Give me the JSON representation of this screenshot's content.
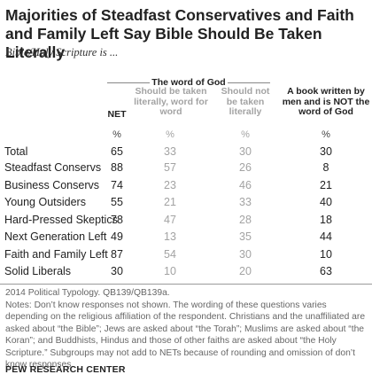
{
  "title": "Majorities of Steadfast Conservatives and Faith and Family Left Say Bible Should Be Taken Literally",
  "subtitle": "Bible/Holy Scripture is ...",
  "chart_data": {
    "type": "table",
    "group_label": "The word of God",
    "columns": [
      {
        "label": "NET",
        "unit": "%"
      },
      {
        "label": "Should be taken literally, word for word",
        "unit": "%"
      },
      {
        "label": "Should not be taken literally",
        "unit": "%"
      },
      {
        "label": "A book written by men and is NOT the word of God",
        "unit": "%"
      }
    ],
    "rows": [
      {
        "label": "Total",
        "values": [
          "65",
          "33",
          "30",
          "30"
        ]
      },
      {
        "label": "Steadfast Conservs",
        "values": [
          "88",
          "57",
          "26",
          "8"
        ]
      },
      {
        "label": "Business Conservs",
        "values": [
          "74",
          "23",
          "46",
          "21"
        ]
      },
      {
        "label": "Young Outsiders",
        "values": [
          "55",
          "21",
          "33",
          "40"
        ]
      },
      {
        "label": "Hard-Pressed Skeptics",
        "values": [
          "78",
          "47",
          "28",
          "18"
        ]
      },
      {
        "label": "Next Generation Left",
        "values": [
          "49",
          "13",
          "35",
          "44"
        ]
      },
      {
        "label": "Faith and Family Left",
        "values": [
          "87",
          "54",
          "30",
          "10"
        ]
      },
      {
        "label": "Solid Liberals",
        "values": [
          "30",
          "10",
          "20",
          "63"
        ]
      }
    ]
  },
  "notes": {
    "line1": "2014 Political Typology. QB139/QB139a.",
    "line2": "Notes: Don’t know responses not shown. The wording of these questions varies depending on the religious affiliation of the respondent. Christians and the unaffiliated are asked about “the Bible”; Jews are asked about “the Torah”; Muslims are asked about “the Koran”; and Buddhists, Hindus and those of other faiths are asked about “the Holy Scripture.” Subgroups may not add to NETs because of rounding and omission of don’t know responses."
  },
  "source": "PEW RESEARCH CENTER"
}
